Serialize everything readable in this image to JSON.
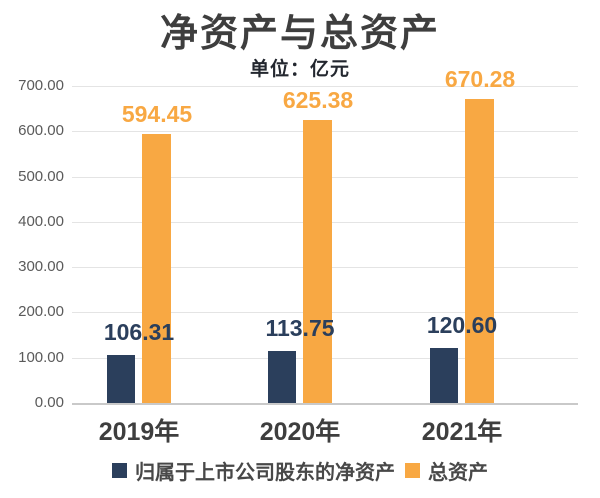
{
  "header": {
    "title": "净资产与总资产",
    "subtitle": "单位：亿元"
  },
  "chart_data": {
    "type": "bar",
    "title": "净资产与总资产",
    "subtitle_unit": "单位：亿元",
    "categories": [
      "2019年",
      "2020年",
      "2021年"
    ],
    "series": [
      {
        "name": "归属于上市公司股东的净资产",
        "color": "#2B3F5C",
        "values": [
          106.31,
          113.75,
          120.6
        ],
        "labels": [
          "106.31",
          "113.75",
          "120.60"
        ]
      },
      {
        "name": "总资产",
        "color": "#F8A843",
        "values": [
          594.45,
          625.38,
          670.28
        ],
        "labels": [
          "594.45",
          "625.38",
          "670.28"
        ]
      }
    ],
    "xlabel": "",
    "ylabel": "亿元",
    "ylim": [
      0,
      700
    ],
    "ytick_step": 100,
    "ytick_labels": [
      "700.00",
      "600.00",
      "500.00",
      "400.00",
      "300.00",
      "200.00",
      "100.00",
      "0.00"
    ],
    "grid": true,
    "legend_position": "bottom",
    "background": "#FFFFFF",
    "gridline_color": "#E4E4E4",
    "axis_line_color": "#C9C9C9",
    "ytick_color": "#5A5A5A",
    "category_label_color": "#3E3E3E",
    "title_color": "#3E3E3E"
  }
}
